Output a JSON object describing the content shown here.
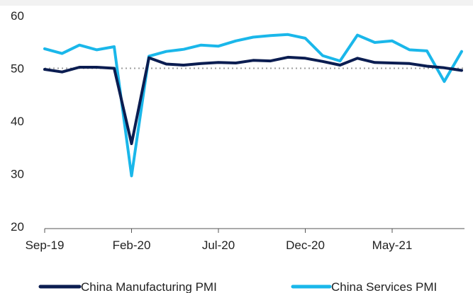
{
  "chart_data": {
    "type": "line",
    "title": "",
    "xlabel": "",
    "ylabel": "",
    "ylim": [
      20,
      60
    ],
    "yticks": [
      20,
      30,
      40,
      50,
      60
    ],
    "x_tick_labels": [
      {
        "index": 0,
        "label": "Sep-19"
      },
      {
        "index": 5,
        "label": "Feb-20"
      },
      {
        "index": 10,
        "label": "Jul-20"
      },
      {
        "index": 15,
        "label": "Dec-20"
      },
      {
        "index": 20,
        "label": "May-21"
      }
    ],
    "reference_line": {
      "value": 50,
      "style": "dotted",
      "color": "#9e9e9e"
    },
    "grid": false,
    "legend_position": "bottom",
    "series": [
      {
        "name": "China Manufacturing PMI",
        "color": "#0b1d51",
        "values": [
          49.8,
          49.3,
          50.2,
          50.2,
          50.0,
          35.7,
          52.0,
          50.8,
          50.6,
          50.9,
          51.1,
          51.0,
          51.5,
          51.4,
          52.1,
          51.9,
          51.3,
          50.6,
          51.9,
          51.1,
          51.0,
          50.9,
          50.4,
          50.1,
          49.6
        ]
      },
      {
        "name": "China Services PMI",
        "color": "#1ab7ea",
        "values": [
          53.7,
          52.8,
          54.4,
          53.5,
          54.1,
          29.6,
          52.3,
          53.2,
          53.6,
          54.4,
          54.2,
          55.2,
          55.9,
          56.2,
          56.4,
          55.7,
          52.4,
          51.4,
          56.3,
          54.9,
          55.2,
          53.5,
          53.3,
          47.5,
          53.2
        ]
      }
    ]
  }
}
